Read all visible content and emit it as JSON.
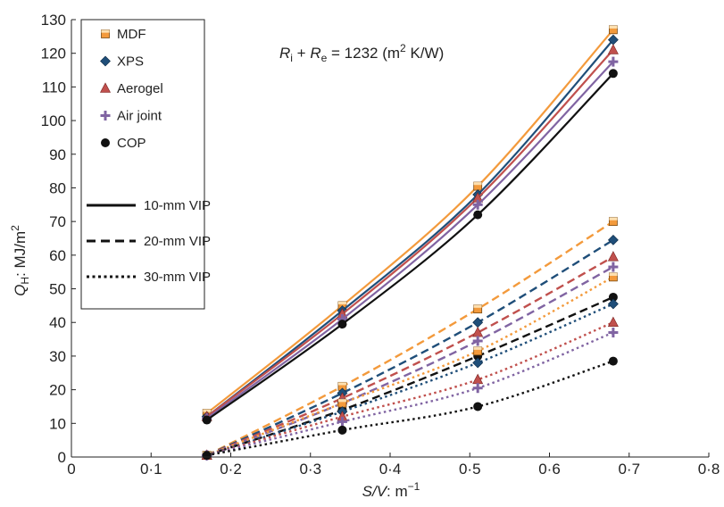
{
  "chart_data": {
    "type": "line",
    "title": "",
    "xlabel": "S/V: m⁻¹",
    "ylabel": "Q_H: MJ/m²",
    "xlim": [
      0,
      0.8
    ],
    "ylim": [
      0,
      130
    ],
    "x_ticks": [
      0,
      0.1,
      0.2,
      0.3,
      0.4,
      0.5,
      0.6,
      0.7,
      0.8
    ],
    "x_tick_labels": [
      "0",
      "0·1",
      "0·2",
      "0·3",
      "0·4",
      "0·5",
      "0·6",
      "0·7",
      "0·8"
    ],
    "y_ticks": [
      0,
      10,
      20,
      30,
      40,
      50,
      60,
      70,
      80,
      90,
      100,
      110,
      120,
      130
    ],
    "grid": false,
    "legend_position": "top-left",
    "annotation": {
      "r_i": "R",
      "sub_i": "i",
      "plus": " + ",
      "r_e": "R",
      "sub_e": "e",
      "rest": " = 1232 (m",
      "sup": "2",
      "end": " K/W)"
    },
    "ylabel_parts": {
      "q": "Q",
      "sub": "H",
      "rest": ": MJ/m",
      "sup": "2"
    },
    "xlabel_parts": {
      "sv": "S/V",
      "rest": ": m",
      "sup": "−1"
    },
    "legend_materials": [
      {
        "name": "MDF",
        "color": "#F39A3C",
        "marker": "square"
      },
      {
        "name": "XPS",
        "color": "#1F4E79",
        "marker": "diamond"
      },
      {
        "name": "Aerogel",
        "color": "#C0504D",
        "marker": "triangle"
      },
      {
        "name": "Air joint",
        "color": "#8064A2",
        "marker": "plus"
      },
      {
        "name": "COP",
        "color": "#111111",
        "marker": "circle"
      }
    ],
    "legend_styles": [
      {
        "name": "10-mm VIP",
        "dash": "solid"
      },
      {
        "name": "20-mm VIP",
        "dash": "dashed"
      },
      {
        "name": "30-mm VIP",
        "dash": "dotted"
      }
    ],
    "x": [
      0.17,
      0.34,
      0.51,
      0.68
    ],
    "series": [
      {
        "material": "MDF",
        "vip": "10-mm VIP",
        "values": [
          13,
          45,
          80.5,
          127
        ]
      },
      {
        "material": "XPS",
        "vip": "10-mm VIP",
        "values": [
          12,
          43.5,
          78,
          124
        ]
      },
      {
        "material": "Aerogel",
        "vip": "10-mm VIP",
        "values": [
          12,
          42.5,
          77,
          121
        ]
      },
      {
        "material": "Air joint",
        "vip": "10-mm VIP",
        "values": [
          11.5,
          41,
          75,
          117.5
        ]
      },
      {
        "material": "COP",
        "vip": "10-mm VIP",
        "values": [
          11,
          39.5,
          72,
          114
        ]
      },
      {
        "material": "MDF",
        "vip": "20-mm VIP",
        "values": [
          0.5,
          21,
          44,
          70
        ]
      },
      {
        "material": "XPS",
        "vip": "20-mm VIP",
        "values": [
          0.5,
          19,
          40,
          64.5
        ]
      },
      {
        "material": "Aerogel",
        "vip": "20-mm VIP",
        "values": [
          0.5,
          17.5,
          37,
          59.5
        ]
      },
      {
        "material": "Air joint",
        "vip": "20-mm VIP",
        "values": [
          0.5,
          16,
          34.5,
          56.5
        ]
      },
      {
        "material": "COP",
        "vip": "20-mm VIP",
        "values": [
          0.5,
          14,
          30,
          47.5
        ]
      },
      {
        "material": "MDF",
        "vip": "30-mm VIP",
        "values": [
          0.5,
          16,
          31.5,
          53.5
        ]
      },
      {
        "material": "XPS",
        "vip": "30-mm VIP",
        "values": [
          0.5,
          13.5,
          28,
          45.5
        ]
      },
      {
        "material": "Aerogel",
        "vip": "30-mm VIP",
        "values": [
          0.5,
          12,
          23,
          40
        ]
      },
      {
        "material": "Air joint",
        "vip": "30-mm VIP",
        "values": [
          0.5,
          10.5,
          20.5,
          37
        ]
      },
      {
        "material": "COP",
        "vip": "30-mm VIP",
        "values": [
          0.5,
          8,
          15,
          28.5
        ]
      }
    ]
  }
}
